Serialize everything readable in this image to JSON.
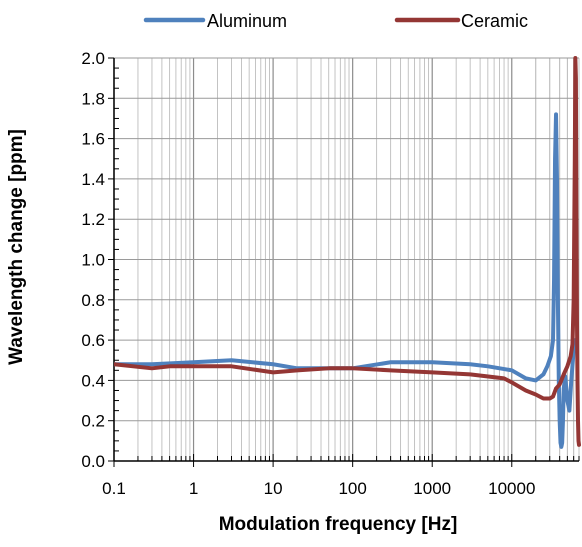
{
  "chart_data": {
    "type": "line",
    "xlabel": "Modulation frequency [Hz]",
    "ylabel": "Wavelength change [ppm]",
    "x_scale": "log",
    "xlim": [
      0.1,
      70000
    ],
    "ylim": [
      0,
      2.0
    ],
    "x_ticks": [
      0.1,
      1,
      10,
      100,
      1000,
      10000
    ],
    "x_tick_labels": [
      "0.1",
      "1",
      "10",
      "100",
      "1000",
      "10000"
    ],
    "y_ticks": [
      0.0,
      0.2,
      0.4,
      0.6,
      0.8,
      1.0,
      1.2,
      1.4,
      1.6,
      1.8,
      2.0
    ],
    "y_tick_labels": [
      "0.0",
      "0.2",
      "0.4",
      "0.6",
      "0.8",
      "1.0",
      "1.2",
      "1.4",
      "1.6",
      "1.8",
      "2.0"
    ],
    "grid": true,
    "legend_position": "top",
    "series": [
      {
        "name": "Aluminum",
        "color": "#4f81bd",
        "x": [
          0.1,
          0.3,
          1,
          3,
          10,
          20,
          50,
          100,
          300,
          1000,
          3000,
          5000,
          10000,
          15000,
          20000,
          25000,
          28000,
          31000,
          33000,
          34000,
          35000,
          36000,
          37000,
          38000,
          39000,
          40000,
          41000,
          42000,
          43000,
          44000,
          45000,
          47000,
          50000,
          53000,
          56000,
          60000,
          63000,
          66000
        ],
        "y": [
          0.48,
          0.48,
          0.49,
          0.5,
          0.48,
          0.46,
          0.46,
          0.46,
          0.49,
          0.49,
          0.48,
          0.47,
          0.45,
          0.41,
          0.4,
          0.43,
          0.47,
          0.52,
          0.6,
          0.9,
          1.5,
          1.72,
          1.4,
          0.8,
          0.4,
          0.2,
          0.09,
          0.07,
          0.09,
          0.2,
          0.36,
          0.42,
          0.3,
          0.25,
          0.4,
          0.55,
          0.6,
          0.58
        ]
      },
      {
        "name": "Ceramic",
        "color": "#943634",
        "x": [
          0.1,
          0.3,
          0.5,
          1,
          3,
          10,
          20,
          50,
          100,
          300,
          1000,
          3000,
          8000,
          10000,
          15000,
          20000,
          25000,
          30000,
          33000,
          36000,
          40000,
          45000,
          50000,
          55000,
          58000,
          60000,
          62000,
          63000,
          64000,
          65000,
          66000,
          67000,
          68000,
          69000,
          70000
        ],
        "y": [
          0.48,
          0.46,
          0.47,
          0.47,
          0.47,
          0.44,
          0.45,
          0.46,
          0.46,
          0.45,
          0.44,
          0.43,
          0.41,
          0.39,
          0.35,
          0.33,
          0.31,
          0.31,
          0.32,
          0.36,
          0.38,
          0.43,
          0.47,
          0.52,
          0.58,
          0.8,
          1.5,
          2.0,
          1.9,
          1.2,
          0.7,
          0.4,
          0.2,
          0.1,
          0.08
        ]
      }
    ]
  }
}
